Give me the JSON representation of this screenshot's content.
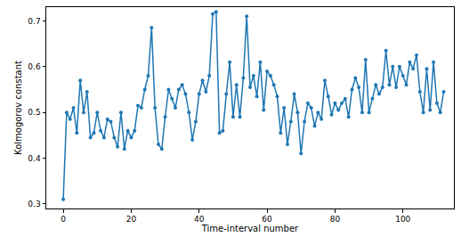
{
  "chart_data": {
    "type": "line",
    "marker": "circle",
    "color": "#1f77b4",
    "grid": false,
    "x_label": "Time-interval number",
    "y_label": "Kolmogorov constant",
    "x": [
      0,
      1,
      2,
      3,
      4,
      5,
      6,
      7,
      8,
      9,
      10,
      11,
      12,
      13,
      14,
      15,
      16,
      17,
      18,
      19,
      20,
      21,
      22,
      23,
      24,
      25,
      26,
      27,
      28,
      29,
      30,
      31,
      32,
      33,
      34,
      35,
      36,
      37,
      38,
      39,
      40,
      41,
      42,
      43,
      44,
      45,
      46,
      47,
      48,
      49,
      50,
      51,
      52,
      53,
      54,
      55,
      56,
      57,
      58,
      59,
      60,
      61,
      62,
      63,
      64,
      65,
      66,
      67,
      68,
      69,
      70,
      71,
      72,
      73,
      74,
      75,
      76,
      77,
      78,
      79,
      80,
      81,
      82,
      83,
      84,
      85,
      86,
      87,
      88,
      89,
      90,
      91,
      92,
      93,
      94,
      95,
      96,
      97,
      98,
      99,
      100,
      101,
      102,
      103,
      104,
      105,
      106,
      107,
      108,
      109,
      110,
      111,
      112
    ],
    "values": [
      0.31,
      0.5,
      0.485,
      0.51,
      0.455,
      0.57,
      0.5,
      0.545,
      0.445,
      0.455,
      0.5,
      0.46,
      0.445,
      0.485,
      0.48,
      0.445,
      0.425,
      0.5,
      0.42,
      0.46,
      0.445,
      0.46,
      0.515,
      0.51,
      0.55,
      0.58,
      0.685,
      0.51,
      0.43,
      0.42,
      0.49,
      0.55,
      0.53,
      0.51,
      0.55,
      0.56,
      0.54,
      0.5,
      0.44,
      0.48,
      0.54,
      0.57,
      0.545,
      0.58,
      0.715,
      0.72,
      0.455,
      0.46,
      0.54,
      0.61,
      0.49,
      0.56,
      0.49,
      0.575,
      0.71,
      0.555,
      0.58,
      0.535,
      0.61,
      0.505,
      0.59,
      0.58,
      0.56,
      0.535,
      0.455,
      0.51,
      0.43,
      0.48,
      0.54,
      0.5,
      0.41,
      0.48,
      0.52,
      0.51,
      0.47,
      0.5,
      0.485,
      0.57,
      0.535,
      0.495,
      0.52,
      0.505,
      0.52,
      0.53,
      0.49,
      0.55,
      0.575,
      0.555,
      0.5,
      0.615,
      0.5,
      0.53,
      0.56,
      0.54,
      0.555,
      0.635,
      0.56,
      0.6,
      0.555,
      0.6,
      0.58,
      0.56,
      0.61,
      0.595,
      0.625,
      0.545,
      0.5,
      0.595,
      0.505,
      0.61,
      0.52,
      0.5,
      0.545
    ],
    "xlim": [
      -5,
      115
    ],
    "xticks": [
      0,
      20,
      40,
      60,
      80,
      100
    ],
    "ylim": [
      0.29,
      0.73
    ],
    "yticks": [
      0.3,
      0.4,
      0.5,
      0.6,
      0.7
    ]
  }
}
